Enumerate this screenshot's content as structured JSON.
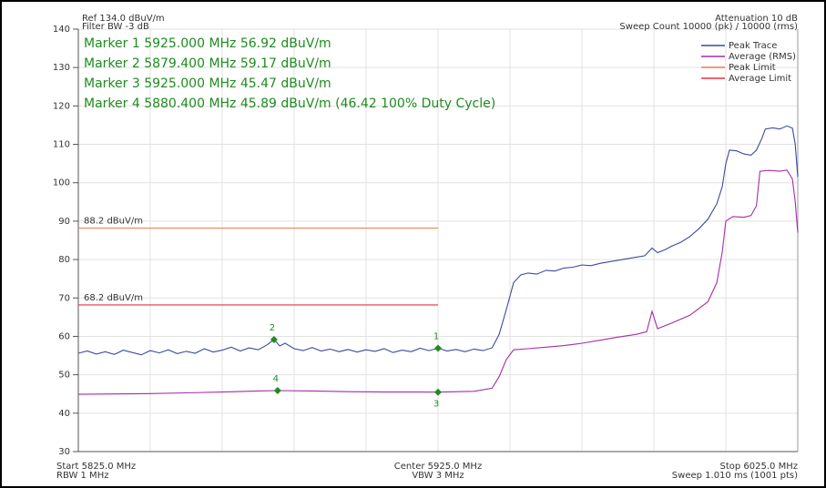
{
  "chart_data": {
    "type": "line",
    "header_left": [
      "Ref 134.0 dBuV/m",
      "Filter BW -3 dB"
    ],
    "header_right": [
      "Attenuation 10 dB",
      "Sweep Count 10000 (pk) / 10000 (rms)"
    ],
    "footer_left": [
      "Start 5825.0 MHz",
      "RBW 1 MHz"
    ],
    "footer_center": [
      "Center 5925.0 MHz",
      "VBW 3 MHz"
    ],
    "footer_right": [
      "Stop 6025.0 MHz",
      "Sweep 1.010 ms (1001 pts)"
    ],
    "xlim": [
      5825,
      6025
    ],
    "ylim": [
      30,
      140
    ],
    "yticks": [
      30,
      40,
      50,
      60,
      70,
      80,
      90,
      100,
      110,
      120,
      130,
      140
    ],
    "grid": true,
    "legend": "top-right",
    "series": [
      {
        "name": "Peak Trace",
        "color": "#3b4a9e",
        "x": [
          5825,
          5827.5,
          5830,
          5832.5,
          5835,
          5837.5,
          5840,
          5842.5,
          5845,
          5847.5,
          5850,
          5852.5,
          5855,
          5857.5,
          5860,
          5862.5,
          5865,
          5867.5,
          5870,
          5872.5,
          5875,
          5877.5,
          5879.4,
          5881,
          5882.5,
          5885,
          5887.5,
          5890,
          5892.5,
          5895,
          5897.5,
          5900,
          5902.5,
          5905,
          5907.5,
          5910,
          5912.5,
          5915,
          5917.5,
          5920,
          5922.5,
          5925,
          5927.5,
          5930,
          5932.5,
          5935,
          5937.5,
          5940,
          5942,
          5944,
          5946,
          5948,
          5950,
          5952.5,
          5955,
          5957.5,
          5960,
          5962.5,
          5965,
          5967.5,
          5970,
          5972.5,
          5975,
          5977.5,
          5980,
          5982.5,
          5984.5,
          5986,
          5988,
          5990,
          5992.5,
          5995,
          5997.5,
          6000,
          6002.5,
          6004,
          6005,
          6006,
          6008,
          6010,
          6012,
          6013.5,
          6015,
          6016,
          6018,
          6020,
          6022,
          6023.5,
          6024.3,
          6025
        ],
        "values": [
          55.6,
          56.2,
          55.4,
          56.0,
          55.3,
          56.4,
          55.8,
          55.2,
          56.3,
          55.7,
          56.5,
          55.5,
          56.1,
          55.6,
          56.8,
          55.9,
          56.4,
          57.2,
          56.2,
          57.0,
          56.5,
          57.8,
          59.17,
          57.5,
          58.2,
          56.8,
          56.3,
          57.1,
          56.2,
          56.7,
          56.0,
          56.6,
          55.9,
          56.5,
          56.1,
          56.8,
          55.8,
          56.4,
          56.0,
          56.9,
          56.3,
          56.92,
          56.2,
          56.6,
          56.0,
          56.7,
          56.3,
          57.0,
          60.5,
          67,
          74,
          76,
          76.5,
          76.2,
          77.2,
          77.0,
          77.8,
          78.0,
          78.6,
          78.4,
          79.0,
          79.4,
          79.8,
          80.2,
          80.6,
          81.0,
          83.0,
          81.8,
          82.5,
          83.5,
          84.5,
          86,
          88,
          90.5,
          94.5,
          99,
          105,
          108.5,
          108.3,
          107.5,
          107.2,
          108.5,
          111.5,
          114,
          114.3,
          114.0,
          114.8,
          114.2,
          110,
          101.5
        ]
      },
      {
        "name": "Average (RMS)",
        "color": "#a62ca6",
        "x": [
          5825,
          5835,
          5845,
          5855,
          5865,
          5875,
          5880.4,
          5890,
          5900,
          5910,
          5920,
          5925,
          5935,
          5940,
          5942,
          5944,
          5946,
          5950,
          5955,
          5960,
          5965,
          5970,
          5975,
          5980,
          5983,
          5984.5,
          5986,
          5990,
          5995,
          6000,
          6002.5,
          6004,
          6005,
          6007,
          6010,
          6012,
          6013.5,
          6014.5,
          6017,
          6020,
          6022,
          6023.5,
          6024.3,
          6025
        ],
        "values": [
          44.9,
          45.0,
          45.1,
          45.3,
          45.5,
          45.8,
          45.89,
          45.8,
          45.6,
          45.5,
          45.5,
          45.47,
          45.7,
          46.5,
          49.5,
          54,
          56.5,
          56.8,
          57.2,
          57.6,
          58.2,
          59.0,
          59.8,
          60.5,
          61.2,
          66.5,
          62.0,
          63.5,
          65.5,
          69,
          74,
          82,
          90,
          91.2,
          91.0,
          91.5,
          94,
          103,
          103.2,
          103.0,
          103.3,
          101,
          95,
          87
        ]
      },
      {
        "name": "Peak Limit",
        "color": "#f07a4a",
        "label": "88.2 dBuV/m",
        "x": [
          5825,
          5925
        ],
        "values": [
          88.2,
          88.2
        ]
      },
      {
        "name": "Average Limit",
        "color": "#e8313f",
        "label": "68.2 dBuV/m",
        "x": [
          5825,
          5925
        ],
        "values": [
          68.2,
          68.2
        ]
      }
    ],
    "marker_color": "#1e8c1e",
    "markers": [
      {
        "label": "1",
        "x": 5925,
        "y": 56.92,
        "side": "above",
        "text": "Marker 1 5925.000 MHz 56.92 dBuV/m"
      },
      {
        "label": "2",
        "x": 5879.4,
        "y": 59.17,
        "side": "above",
        "text": "Marker 2 5879.400 MHz 59.17 dBuV/m"
      },
      {
        "label": "3",
        "x": 5925,
        "y": 45.47,
        "side": "below",
        "text": "Marker 3 5925.000 MHz 45.47 dBuV/m"
      },
      {
        "label": "4",
        "x": 5880.4,
        "y": 45.89,
        "side": "above",
        "text": "Marker 4 5880.400 MHz 45.89 dBuV/m (46.42 100% Duty Cycle)"
      }
    ]
  }
}
